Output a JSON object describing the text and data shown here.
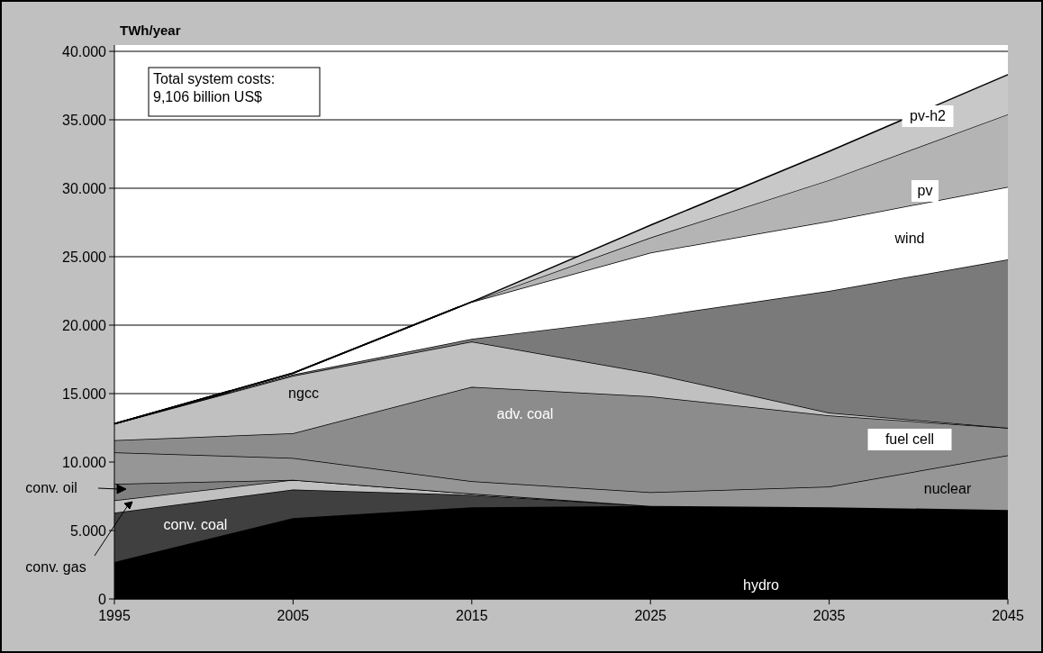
{
  "chart_data": {
    "type": "area",
    "stacked": true,
    "ylabel": "TWh/year",
    "x": [
      1995,
      2005,
      2015,
      2025,
      2035,
      2045
    ],
    "xlim": [
      1995,
      2045
    ],
    "xticks": [
      1995,
      2005,
      2015,
      2025,
      2035,
      2045
    ],
    "ylim": [
      0,
      40000
    ],
    "yticks": [
      {
        "value": 0,
        "label": "0"
      },
      {
        "value": 5000,
        "label": "5.000"
      },
      {
        "value": 10000,
        "label": "10.000"
      },
      {
        "value": 15000,
        "label": "15.000"
      },
      {
        "value": 20000,
        "label": "20.000"
      },
      {
        "value": 25000,
        "label": "25.000"
      },
      {
        "value": 30000,
        "label": "30.000"
      },
      {
        "value": 35000,
        "label": "35.000"
      },
      {
        "value": 40000,
        "label": "40.000"
      }
    ],
    "grid": "y",
    "legend": "left",
    "series": [
      {
        "name": "hydro",
        "color": "#000000",
        "values": [
          2700,
          5900,
          6700,
          6800,
          6700,
          6500
        ]
      },
      {
        "name": "conv. coal",
        "color": "#404040",
        "values": [
          3600,
          2100,
          900,
          0,
          0,
          0
        ]
      },
      {
        "name": "conv. gas",
        "color": "#c0c0c0",
        "values": [
          900,
          700,
          100,
          0,
          0,
          0
        ]
      },
      {
        "name": "conv. oil",
        "color": "#808080",
        "values": [
          1200,
          0,
          0,
          0,
          0,
          0
        ]
      },
      {
        "name": "nuclear",
        "color": "#969696",
        "values": [
          2300,
          1600,
          900,
          1000,
          1500,
          4000
        ]
      },
      {
        "name": "adv. coal",
        "color": "#8c8c8c",
        "values": [
          900,
          1800,
          6900,
          7000,
          5200,
          2000
        ]
      },
      {
        "name": "ngcc",
        "color": "#c0c0c0",
        "values": [
          1200,
          4200,
          3300,
          1700,
          200,
          0
        ]
      },
      {
        "name": "fuel cell",
        "color": "#7a7a7a",
        "values": [
          0,
          100,
          200,
          4100,
          8900,
          12300
        ]
      },
      {
        "name": "wind",
        "color": "#ffffff",
        "values": [
          0,
          100,
          2700,
          4700,
          5100,
          5300
        ]
      },
      {
        "name": "pv",
        "color": "#b4b4b4",
        "values": [
          0,
          0,
          0,
          1100,
          3000,
          5300
        ]
      },
      {
        "name": "pv-h2",
        "color": "#c8c8c8",
        "values": [
          0,
          0,
          0,
          900,
          2100,
          2900
        ]
      }
    ],
    "annotations": [
      "Total system costs: 9,106 billion US$"
    ]
  }
}
